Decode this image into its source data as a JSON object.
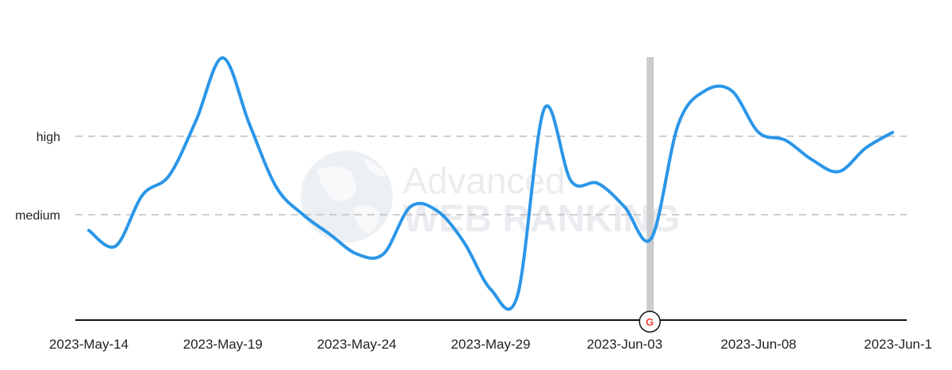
{
  "chart_data": {
    "type": "line",
    "title": "",
    "xlabel": "",
    "ylabel": "",
    "x_ticks": [
      "2023-May-14",
      "2023-May-19",
      "2023-May-24",
      "2023-May-29",
      "2023-Jun-03",
      "2023-Jun-08",
      "2023-Jun-1"
    ],
    "y_levels": [
      {
        "label": "medium",
        "value": 1
      },
      {
        "label": "high",
        "value": 2
      }
    ],
    "ylim": [
      -0.33,
      3.02
    ],
    "grid": "dashed lines at medium and high",
    "series": [
      {
        "color": "#2b96e8",
        "x": [
          "2023-May-14",
          "2023-May-15",
          "2023-May-16",
          "2023-May-17",
          "2023-May-18",
          "2023-May-19",
          "2023-May-20",
          "2023-May-21",
          "2023-May-22",
          "2023-May-23",
          "2023-May-24",
          "2023-May-25",
          "2023-May-26",
          "2023-May-27",
          "2023-May-28",
          "2023-May-29",
          "2023-May-30",
          "2023-May-31",
          "2023-Jun-01",
          "2023-Jun-02",
          "2023-Jun-03",
          "2023-Jun-04",
          "2023-Jun-05",
          "2023-Jun-06",
          "2023-Jun-07",
          "2023-Jun-08",
          "2023-Jun-09",
          "2023-Jun-10",
          "2023-Jun-11",
          "2023-Jun-12",
          "2023-Jun-13"
        ],
        "values": [
          0.8,
          0.6,
          1.25,
          1.5,
          2.2,
          3.0,
          2.15,
          1.35,
          1.0,
          0.75,
          0.5,
          0.5,
          1.1,
          1.05,
          0.65,
          0.05,
          -0.03,
          2.35,
          1.43,
          1.4,
          1.1,
          0.7,
          2.15,
          2.58,
          2.58,
          2.05,
          1.95,
          1.7,
          1.55,
          1.85,
          2.05
        ]
      }
    ],
    "annotations": [
      {
        "x": "2023-Jun-04",
        "type": "vertical-band",
        "color": "#cccccc",
        "marker": "G",
        "marker_icon": "google-g-icon"
      }
    ],
    "watermark": {
      "line1": "Advanced",
      "line2": "WEB RANKING",
      "icon": "globe-icon"
    }
  }
}
